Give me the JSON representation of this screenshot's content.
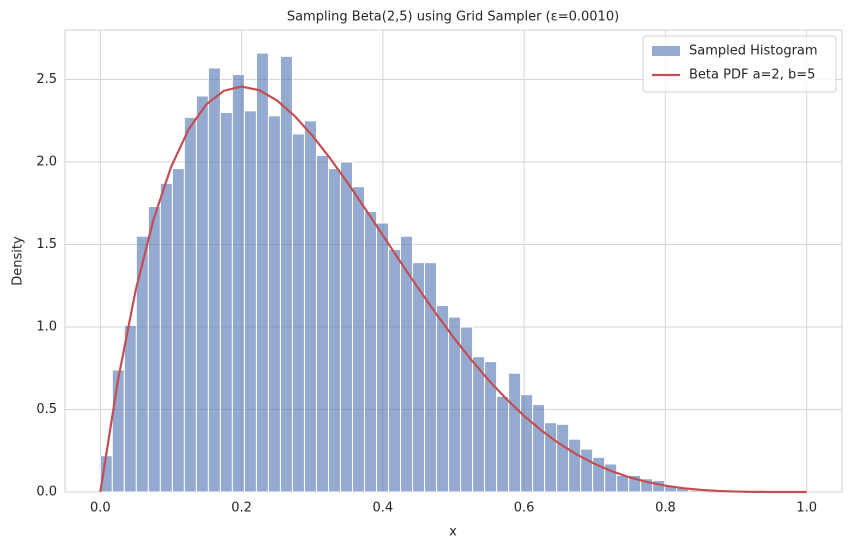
{
  "chart_data": {
    "type": "histogram",
    "title": "Sampling Beta(2,5) using Grid Sampler (ε=0.0010)",
    "xlabel": "x",
    "ylabel": "Density",
    "xlim": [
      -0.05,
      1.05
    ],
    "ylim": [
      0,
      2.8
    ],
    "xticks": [
      {
        "value": 0,
        "label": "0.0"
      },
      0.2,
      0.4,
      0.6,
      0.8,
      {
        "value": 1,
        "label": "1.0"
      }
    ],
    "yticks": [
      {
        "value": 0,
        "label": "0.0"
      },
      0.5,
      {
        "value": 1,
        "label": "1.0"
      },
      1.5,
      {
        "value": 2,
        "label": "2.0"
      },
      2.5
    ],
    "grid": true,
    "legend": "upper right",
    "series": [
      {
        "type": "histogram",
        "name": "Sampled Histogram",
        "color": "#4c72b0",
        "bins": [
          0,
          0.017,
          0.034,
          0.051,
          0.068,
          0.085,
          0.102,
          0.119,
          0.136,
          0.153,
          0.17,
          0.187,
          0.204,
          0.221,
          0.238,
          0.255,
          0.272,
          0.289,
          0.306,
          0.323,
          0.34,
          0.357,
          0.374,
          0.391,
          0.408,
          0.425,
          0.442,
          0.459,
          0.476,
          0.493,
          0.51,
          0.527,
          0.544,
          0.561,
          0.578,
          0.595,
          0.612,
          0.629,
          0.646,
          0.663,
          0.68,
          0.697,
          0.714,
          0.731,
          0.748,
          0.765,
          0.782,
          0.799,
          0.816,
          0.833,
          0.85
        ],
        "values": [
          0.22,
          0.74,
          1.01,
          1.55,
          1.73,
          1.87,
          1.96,
          2.27,
          2.4,
          2.57,
          2.3,
          2.53,
          2.31,
          2.66,
          2.28,
          2.64,
          2.17,
          2.25,
          2.04,
          1.96,
          2.0,
          1.85,
          1.7,
          1.63,
          1.47,
          1.55,
          1.39,
          1.39,
          1.13,
          1.06,
          1.0,
          0.82,
          0.79,
          0.58,
          0.72,
          0.59,
          0.53,
          0.42,
          0.41,
          0.32,
          0.26,
          0.21,
          0.17,
          0.1,
          0.1,
          0.08,
          0.07,
          0.04,
          0.03,
          0.01
        ]
      },
      {
        "type": "line",
        "name": "Beta PDF a=2, b=5",
        "color": "#c44e52",
        "x": [
          0,
          0.025,
          0.05,
          0.075,
          0.1,
          0.125,
          0.15,
          0.175,
          0.2,
          0.225,
          0.25,
          0.275,
          0.3,
          0.325,
          0.35,
          0.375,
          0.4,
          0.425,
          0.45,
          0.475,
          0.5,
          0.525,
          0.55,
          0.575,
          0.6,
          0.625,
          0.65,
          0.675,
          0.7,
          0.725,
          0.75,
          0.775,
          0.8,
          0.825,
          0.85,
          0.875,
          0.9,
          0.925,
          0.95,
          0.975,
          1
        ],
        "values": [
          0,
          0.6778,
          1.2218,
          1.6472,
          1.9683,
          2.1982,
          2.349,
          2.4321,
          2.4576,
          2.435,
          2.373,
          2.2792,
          2.1609,
          2.0241,
          1.8743,
          1.7166,
          1.5552,
          1.3937,
          1.2352,
          1.0826,
          0.9375,
          0.8018,
          0.6766,
          0.5628,
          0.4608,
          0.3708,
          0.2927,
          0.226,
          0.1701,
          0.1244,
          0.0879,
          0.0596,
          0.0384,
          0.0232,
          0.0129,
          0.0064,
          0.0027,
          0.0009,
          0.0002,
          0,
          0
        ]
      }
    ]
  }
}
